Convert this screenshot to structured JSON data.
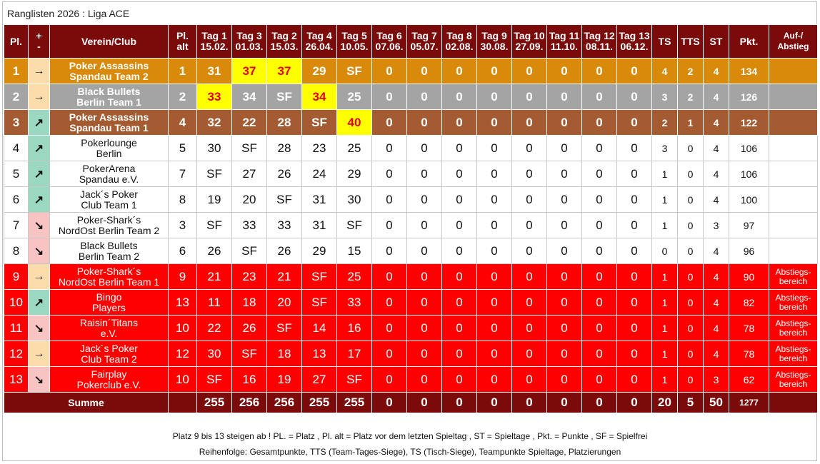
{
  "title": "Ranglisten 2026 : Liga ACE",
  "header": {
    "pl": "Pl.",
    "trend_plus": "+",
    "trend_minus": "-",
    "club": "Verein/Club",
    "pl_alt_1": "Pl.",
    "pl_alt_2": "alt",
    "days": [
      {
        "label": "Tag 1",
        "date": "15.02."
      },
      {
        "label": "Tag 3",
        "date": "01.03."
      },
      {
        "label": "Tag 2",
        "date": "15.03."
      },
      {
        "label": "Tag 4",
        "date": "26.04."
      },
      {
        "label": "Tag 5",
        "date": "10.05."
      },
      {
        "label": "Tag 6",
        "date": "07.06."
      },
      {
        "label": "Tag 7",
        "date": "05.07."
      },
      {
        "label": "Tag 8",
        "date": "02.08."
      },
      {
        "label": "Tag 9",
        "date": "30.08."
      },
      {
        "label": "Tag 10",
        "date": "27.09."
      },
      {
        "label": "Tag 11",
        "date": "11.10."
      },
      {
        "label": "Tag 12",
        "date": "08.11."
      },
      {
        "label": "Tag 13",
        "date": "06.12."
      }
    ],
    "ts": "TS",
    "tts": "TTS",
    "st": "ST",
    "pkt": "Pkt.",
    "auf_1": "Auf-/",
    "auf_2": "Abstieg"
  },
  "rows": [
    {
      "style": "gold",
      "pl": "1",
      "trend": "→",
      "trend_kind": "right",
      "club1": "Poker Assassins",
      "club2": "Spandau Team 2",
      "pl_alt": "1",
      "days": [
        "31",
        "37",
        "37",
        "29",
        "SF",
        "0",
        "0",
        "0",
        "0",
        "0",
        "0",
        "0",
        "0"
      ],
      "hl": [
        1,
        2
      ],
      "ts": "4",
      "tts": "2",
      "st": "4",
      "pkt": "134",
      "auf1": "",
      "auf2": ""
    },
    {
      "style": "silver",
      "pl": "2",
      "trend": "→",
      "trend_kind": "right",
      "club1": "Black Bullets",
      "club2": "Berlin Team 1",
      "pl_alt": "2",
      "days": [
        "33",
        "34",
        "SF",
        "34",
        "25",
        "0",
        "0",
        "0",
        "0",
        "0",
        "0",
        "0",
        "0"
      ],
      "hl": [
        0,
        3
      ],
      "ts": "3",
      "tts": "2",
      "st": "4",
      "pkt": "126",
      "auf1": "",
      "auf2": ""
    },
    {
      "style": "bronze",
      "pl": "3",
      "trend": "↗",
      "trend_kind": "up",
      "club1": "Poker Assassins",
      "club2": "Spandau Team 1",
      "pl_alt": "4",
      "days": [
        "32",
        "22",
        "28",
        "SF",
        "40",
        "0",
        "0",
        "0",
        "0",
        "0",
        "0",
        "0",
        "0"
      ],
      "hl": [
        4
      ],
      "ts": "2",
      "tts": "1",
      "st": "4",
      "pkt": "122",
      "auf1": "",
      "auf2": ""
    },
    {
      "style": "white",
      "pl": "4",
      "trend": "↗",
      "trend_kind": "up",
      "club1": "Pokerlounge",
      "club2": "Berlin",
      "pl_alt": "5",
      "days": [
        "30",
        "SF",
        "28",
        "23",
        "25",
        "0",
        "0",
        "0",
        "0",
        "0",
        "0",
        "0",
        "0"
      ],
      "hl": [],
      "ts": "3",
      "tts": "0",
      "st": "4",
      "pkt": "106",
      "auf1": "",
      "auf2": ""
    },
    {
      "style": "white",
      "pl": "5",
      "trend": "↗",
      "trend_kind": "up",
      "club1": "PokerArena",
      "club2": "Spandau e.V.",
      "pl_alt": "7",
      "days": [
        "SF",
        "27",
        "26",
        "24",
        "29",
        "0",
        "0",
        "0",
        "0",
        "0",
        "0",
        "0",
        "0"
      ],
      "hl": [],
      "ts": "1",
      "tts": "0",
      "st": "4",
      "pkt": "106",
      "auf1": "",
      "auf2": ""
    },
    {
      "style": "white",
      "pl": "6",
      "trend": "↗",
      "trend_kind": "up",
      "club1": "Jack´s Poker",
      "club2": "Club Team 1",
      "pl_alt": "8",
      "days": [
        "19",
        "20",
        "SF",
        "31",
        "30",
        "0",
        "0",
        "0",
        "0",
        "0",
        "0",
        "0",
        "0"
      ],
      "hl": [],
      "ts": "1",
      "tts": "0",
      "st": "4",
      "pkt": "100",
      "auf1": "",
      "auf2": ""
    },
    {
      "style": "white",
      "pl": "7",
      "trend": "↘",
      "trend_kind": "down",
      "club1": "Poker-Shark´s",
      "club2": "NordOst Berlin Team 2",
      "pl_alt": "3",
      "days": [
        "SF",
        "33",
        "33",
        "31",
        "SF",
        "0",
        "0",
        "0",
        "0",
        "0",
        "0",
        "0",
        "0"
      ],
      "hl": [],
      "ts": "1",
      "tts": "0",
      "st": "3",
      "pkt": "97",
      "auf1": "",
      "auf2": ""
    },
    {
      "style": "white",
      "pl": "8",
      "trend": "↘",
      "trend_kind": "down",
      "club1": "Black Bullets",
      "club2": "Berlin Team 2",
      "pl_alt": "6",
      "days": [
        "26",
        "SF",
        "26",
        "29",
        "15",
        "0",
        "0",
        "0",
        "0",
        "0",
        "0",
        "0",
        "0"
      ],
      "hl": [],
      "ts": "0",
      "tts": "0",
      "st": "4",
      "pkt": "96",
      "auf1": "",
      "auf2": ""
    },
    {
      "style": "red",
      "pl": "9",
      "trend": "→",
      "trend_kind": "right",
      "club1": "Poker-Shark´s",
      "club2": "NordOst Berlin Team 1",
      "pl_alt": "9",
      "days": [
        "21",
        "23",
        "21",
        "SF",
        "25",
        "0",
        "0",
        "0",
        "0",
        "0",
        "0",
        "0",
        "0"
      ],
      "hl": [],
      "ts": "1",
      "tts": "0",
      "st": "4",
      "pkt": "90",
      "auf1": "Abstiegs-",
      "auf2": "bereich"
    },
    {
      "style": "red",
      "pl": "10",
      "trend": "↗",
      "trend_kind": "up",
      "club1": "Bingo",
      "club2": "Players",
      "pl_alt": "13",
      "days": [
        "11",
        "18",
        "20",
        "SF",
        "33",
        "0",
        "0",
        "0",
        "0",
        "0",
        "0",
        "0",
        "0"
      ],
      "hl": [],
      "ts": "1",
      "tts": "0",
      "st": "4",
      "pkt": "82",
      "auf1": "Abstiegs-",
      "auf2": "bereich"
    },
    {
      "style": "red",
      "pl": "11",
      "trend": "↘",
      "trend_kind": "down",
      "club1": "Raisin´Titans",
      "club2": "e.V.",
      "pl_alt": "10",
      "days": [
        "22",
        "26",
        "SF",
        "14",
        "16",
        "0",
        "0",
        "0",
        "0",
        "0",
        "0",
        "0",
        "0"
      ],
      "hl": [],
      "ts": "1",
      "tts": "0",
      "st": "4",
      "pkt": "78",
      "auf1": "Abstiegs-",
      "auf2": "bereich"
    },
    {
      "style": "red",
      "pl": "12",
      "trend": "→",
      "trend_kind": "right",
      "club1": "Jack´s Poker",
      "club2": "Club Team 2",
      "pl_alt": "12",
      "days": [
        "30",
        "SF",
        "18",
        "13",
        "17",
        "0",
        "0",
        "0",
        "0",
        "0",
        "0",
        "0",
        "0"
      ],
      "hl": [],
      "ts": "1",
      "tts": "0",
      "st": "4",
      "pkt": "78",
      "auf1": "Abstiegs-",
      "auf2": "bereich"
    },
    {
      "style": "red",
      "pl": "13",
      "trend": "↘",
      "trend_kind": "down",
      "club1": "Fairplay",
      "club2": "Pokerclub e.V.",
      "pl_alt": "10",
      "days": [
        "SF",
        "16",
        "19",
        "27",
        "SF",
        "0",
        "0",
        "0",
        "0",
        "0",
        "0",
        "0",
        "0"
      ],
      "hl": [],
      "ts": "1",
      "tts": "0",
      "st": "3",
      "pkt": "62",
      "auf1": "Abstiegs-",
      "auf2": "bereich"
    }
  ],
  "footer": {
    "label": "Summe",
    "days": [
      "255",
      "256",
      "256",
      "255",
      "255",
      "0",
      "0",
      "0",
      "0",
      "0",
      "0",
      "0",
      "0"
    ],
    "ts": "20",
    "tts": "5",
    "st": "50",
    "pkt": "1277"
  },
  "notes": {
    "line1": "Platz 9 bis 13 steigen ab ! PL. = Platz , Pl. alt = Platz vor dem letzten Spieltag , ST = Spieltage , Pkt. = Punkte , SF = Spielfrei",
    "line2": "Reihenfolge: Gesamtpunkte, TTS (Team-Tages-Siege), TS (Tisch-Siege), Teampunkte Spieltage, Platzierungen"
  },
  "colors": {
    "header_bg": "#7b0a0a",
    "gold": "#d98a0a",
    "silver": "#a4a4a4",
    "bronze": "#a55b31",
    "relegation_red": "#ff0000",
    "highlight_yellow": "#ffff00",
    "trend_up": "#9bd8c2",
    "trend_down": "#f8c3c3",
    "trend_same": "#fddcab"
  }
}
